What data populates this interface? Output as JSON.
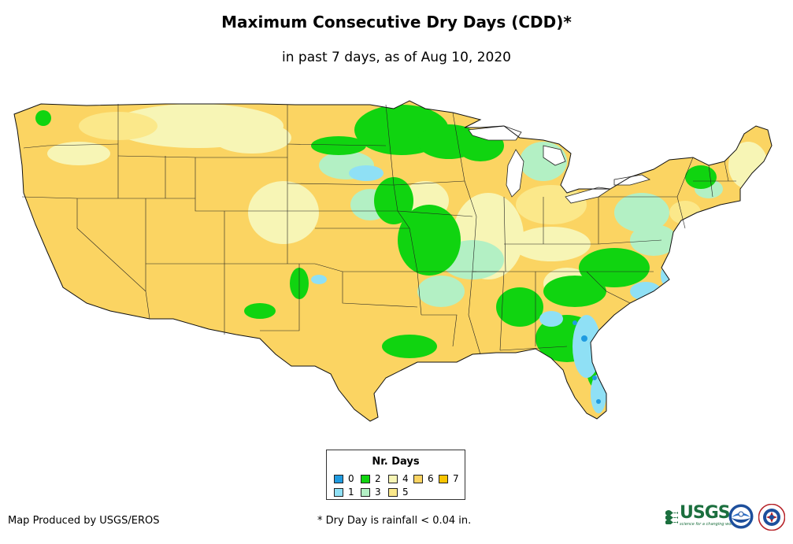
{
  "title": "Maximum Consecutive Dry Days (CDD)*",
  "subtitle": "in past 7 days, as of Aug 10, 2020",
  "legend": {
    "title": "Nr. Days",
    "items": [
      {
        "label": "0",
        "color": "#1f9be0"
      },
      {
        "label": "1",
        "color": "#8fe0f5"
      },
      {
        "label": "2",
        "color": "#10d410"
      },
      {
        "label": "3",
        "color": "#b3f0c4"
      },
      {
        "label": "4",
        "color": "#f7f5b5"
      },
      {
        "label": "5",
        "color": "#fbe88a"
      },
      {
        "label": "6",
        "color": "#fbd462"
      },
      {
        "label": "7",
        "color": "#f8c400"
      }
    ]
  },
  "credit": "Map Produced by USGS/EROS",
  "footnote": "* Dry Day is rainfall < 0.04 in.",
  "logos": {
    "usgs": "USGS",
    "usgs_tagline": "science for a changing world",
    "noaa": "NOAA",
    "nws": "NWS"
  },
  "icons": [
    "noaa-seal-icon",
    "nws-seal-icon",
    "usgs-wave-icon"
  ]
}
